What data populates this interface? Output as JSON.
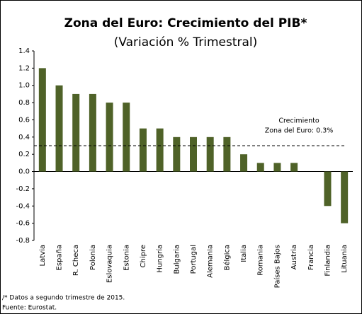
{
  "chart_data": {
    "type": "bar",
    "title": "Zona del Euro: Crecimiento del PIB*",
    "subtitle": "(Variación % Trimestral)",
    "categories": [
      "Latvia",
      "España",
      "R. Checa",
      "Polonia",
      "Eslovaquia",
      "Estonia",
      "Chipre",
      "Hungría",
      "Bulgaria",
      "Portugal",
      "Alemania",
      "Bélgica",
      "Italia",
      "Romania",
      "Países Bajos",
      "Austria",
      "Francia",
      "Finlandia",
      "Lituania"
    ],
    "values": [
      1.2,
      1.0,
      0.9,
      0.9,
      0.8,
      0.8,
      0.5,
      0.5,
      0.4,
      0.4,
      0.4,
      0.4,
      0.2,
      0.1,
      0.1,
      0.1,
      0.0,
      -0.4,
      -0.6
    ],
    "color": "#4f6228",
    "ylim": [
      -0.8,
      1.4
    ],
    "yticks": [
      1.4,
      1.2,
      {
        "value": 1.0,
        "label": "1.0"
      },
      0.8,
      0.6,
      0.4,
      0.2,
      {
        "value": 0.0,
        "label": "0.0"
      },
      -0.2,
      -0.4,
      -0.6,
      -0.8
    ],
    "reference_line": {
      "value": 0.3,
      "label": [
        "Crecimiento",
        "Zona del Euro: 0.3%"
      ]
    },
    "footnotes": [
      "/* Datos a segundo trimestre de 2015.",
      "Fuente: Eurostat."
    ]
  }
}
